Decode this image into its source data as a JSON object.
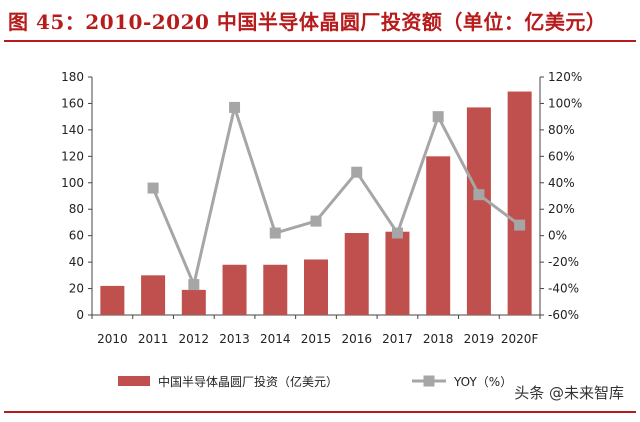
{
  "title": "图 45：2010-2020 中国半导体晶圆厂投资额（单位：亿美元）",
  "watermark": "头条 @未来智库",
  "colors": {
    "title": "#b71c1c",
    "bar": "#c0504d",
    "line": "#a6a6a6",
    "axis": "#444444"
  },
  "chart_data": {
    "type": "bar+line",
    "categories": [
      "2010",
      "2011",
      "2012",
      "2013",
      "2014",
      "2015",
      "2016",
      "2017",
      "2018",
      "2019",
      "2020F"
    ],
    "series": [
      {
        "name": "中国半导体晶圆厂投资（亿美元）",
        "type": "bar",
        "axis": "left",
        "values": [
          22,
          30,
          19,
          38,
          38,
          42,
          62,
          63,
          120,
          157,
          169
        ]
      },
      {
        "name": "YOY（%）",
        "type": "line",
        "axis": "right",
        "values": [
          null,
          36,
          -37,
          97,
          2,
          11,
          48,
          2,
          90,
          31,
          8
        ]
      }
    ],
    "left_axis": {
      "min": 0,
      "max": 180,
      "ticks": [
        "0",
        "20",
        "40",
        "60",
        "80",
        "100",
        "120",
        "140",
        "160",
        "180"
      ]
    },
    "right_axis": {
      "min": -60,
      "max": 120,
      "ticks": [
        "-60%",
        "-40%",
        "-20%",
        "0%",
        "20%",
        "40%",
        "60%",
        "80%",
        "100%",
        "120%"
      ]
    },
    "grid": false,
    "legend_position": "bottom"
  }
}
